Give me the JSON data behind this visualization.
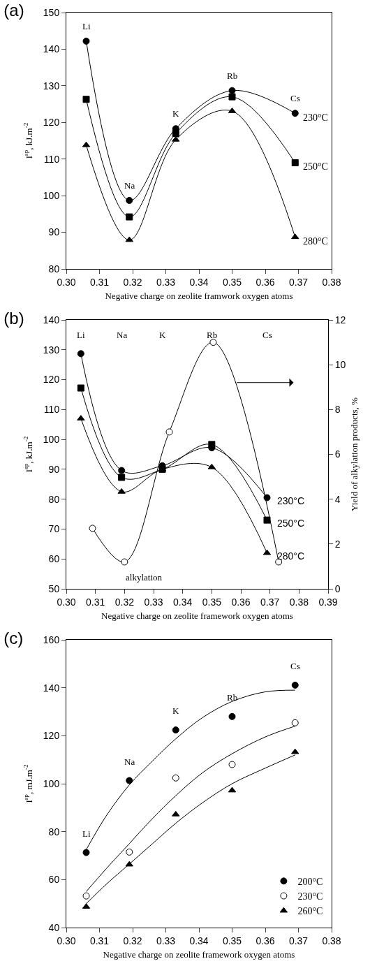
{
  "chart_data": [
    {
      "type": "line",
      "title": "(a)",
      "xlabel": "Negative charge on zeolite framwork oxygen atoms",
      "ylabel": "I$^{sp}$, kJ.m$^{-2}$",
      "x": [
        0.306,
        0.319,
        0.333,
        0.35,
        0.369
      ],
      "series": [
        {
          "name": "230°C",
          "color": "#000000",
          "marker": "circle",
          "values": [
            142.2,
            98.7,
            118.3,
            128.7,
            122.5
          ]
        },
        {
          "name": "250°C",
          "color": "#000000",
          "marker": "square",
          "values": [
            126.3,
            94.2,
            117.0,
            127.0,
            109.0
          ]
        },
        {
          "name": "280°C",
          "color": "#000000",
          "marker": "triangle",
          "values": [
            113.8,
            87.9,
            115.3,
            123.1,
            88.7
          ]
        }
      ],
      "xlim": [
        0.3,
        0.38
      ],
      "xticks": [
        {
          "value": 0.3,
          "label": "0.30"
        },
        {
          "value": 0.31,
          "label": "0.31"
        },
        {
          "value": 0.32,
          "label": "0.32"
        },
        {
          "value": 0.33,
          "label": "0.33"
        },
        {
          "value": 0.34,
          "label": "0.34"
        },
        {
          "value": 0.35,
          "label": "0.35"
        },
        {
          "value": 0.36,
          "label": "0.36"
        },
        {
          "value": 0.37,
          "label": "0.37"
        },
        {
          "value": 0.38,
          "label": "0.38"
        }
      ],
      "ylim": [
        80,
        150
      ],
      "yticks": [
        80,
        90,
        100,
        110,
        120,
        130,
        140,
        150
      ],
      "annotations": [
        "Li",
        "Na",
        "K",
        "Rb",
        "Cs"
      ],
      "grid": false,
      "legend": false
    },
    {
      "type": "line",
      "title": "(b)",
      "xlabel": "Negative charge on zeolite framework oxygen atoms",
      "ylabel": "I$^{sp}$, kJ.m$^{-2}$",
      "y2label": "Yield of alkylation products, %",
      "x": [
        0.305,
        0.319,
        0.333,
        0.35,
        0.369
      ],
      "series": [
        {
          "name": "230°C",
          "color": "#000000",
          "marker": "circle",
          "values": [
            128.7,
            89.6,
            91.2,
            97.2,
            80.5
          ]
        },
        {
          "name": "250°C",
          "color": "#000000",
          "marker": "square",
          "values": [
            117.2,
            87.3,
            90.0,
            98.3,
            73.0
          ]
        },
        {
          "name": "280°C",
          "color": "#000000",
          "marker": "triangle",
          "values": [
            107.0,
            82.5,
            90.0,
            90.7,
            62.0
          ]
        },
        {
          "color": "#ffffff",
          "marker": "circle",
          "axis": "y2",
          "x": [
            0.309,
            0.32,
            0.3354,
            0.3505,
            0.373
          ],
          "values": [
            2.7,
            1.2,
            7.0,
            11.0,
            1.2
          ]
        }
      ],
      "xlim": [
        0.3,
        0.39
      ],
      "xticks": [
        {
          "value": 0.3,
          "label": "0.30"
        },
        {
          "value": 0.31,
          "label": "0.31"
        },
        {
          "value": 0.32,
          "label": "0.32"
        },
        {
          "value": 0.33,
          "label": "0.33"
        },
        {
          "value": 0.34,
          "label": "0.34"
        },
        {
          "value": 0.35,
          "label": "0.35"
        },
        {
          "value": 0.36,
          "label": "0.36"
        },
        {
          "value": 0.37,
          "label": "0.37"
        },
        {
          "value": 0.38,
          "label": "0.38"
        },
        {
          "value": 0.39,
          "label": "0.39"
        }
      ],
      "ylim": [
        50,
        140
      ],
      "yticks": [
        50,
        60,
        70,
        80,
        90,
        100,
        110,
        120,
        130,
        140
      ],
      "y2lim": [
        0,
        12
      ],
      "y2ticks": [
        0,
        2,
        4,
        6,
        8,
        10,
        12
      ],
      "annotations": [
        "Li",
        "Na",
        "K",
        "Rb",
        "Cs",
        "alkylation"
      ],
      "grid": false,
      "legend": false
    },
    {
      "type": "scatter",
      "title": "(c)",
      "xlabel": "Negative charge on zeolite framework oxygen atoms",
      "ylabel": "I$^{sp}$, mJ.m$^{-2}$",
      "x": [
        0.306,
        0.319,
        0.333,
        0.35,
        0.369
      ],
      "series": [
        {
          "name": "200°C",
          "color": "#000000",
          "marker": "circle",
          "values": [
            71.3,
            101.3,
            122.4,
            128.0,
            141.1
          ]
        },
        {
          "name": "230°C",
          "color": "#ffffff",
          "marker": "circle",
          "values": [
            53.2,
            71.5,
            102.4,
            108.0,
            125.4
          ]
        },
        {
          "name": "260°C",
          "color": "#000000",
          "marker": "triangle",
          "values": [
            48.7,
            66.3,
            87.2,
            97.2,
            113.2
          ]
        },
        {
          "type": "line",
          "color": "#000000",
          "marker": "none",
          "x": [
            0.306,
            0.312,
            0.319,
            0.326,
            0.333,
            0.341,
            0.35,
            0.36,
            0.369
          ],
          "values": [
            72.5,
            86.5,
            99.5,
            109.5,
            118.7,
            127.5,
            134.3,
            138.3,
            139.0
          ]
        },
        {
          "type": "line",
          "color": "#000000",
          "marker": "none",
          "x": [
            0.306,
            0.312,
            0.319,
            0.326,
            0.333,
            0.341,
            0.35,
            0.36,
            0.369
          ],
          "values": [
            55.0,
            64.5,
            75.0,
            85.5,
            95.0,
            104.5,
            112.5,
            119.5,
            124.0
          ]
        },
        {
          "type": "line",
          "color": "#000000",
          "marker": "none",
          "x": [
            0.306,
            0.312,
            0.319,
            0.326,
            0.333,
            0.341,
            0.35,
            0.36,
            0.369
          ],
          "values": [
            50.0,
            58.0,
            66.5,
            75.0,
            83.5,
            92.0,
            100.0,
            106.5,
            112.0
          ]
        }
      ],
      "xlim": [
        0.3,
        0.38
      ],
      "xticks": [
        {
          "value": 0.3,
          "label": "0.30"
        },
        {
          "value": 0.31,
          "label": "0.31"
        },
        {
          "value": 0.32,
          "label": "0.32"
        },
        {
          "value": 0.33,
          "label": "0.33"
        },
        {
          "value": 0.34,
          "label": "0.34"
        },
        {
          "value": 0.35,
          "label": "0.35"
        },
        {
          "value": 0.36,
          "label": "0.36"
        },
        {
          "value": 0.37,
          "label": "0.37"
        },
        {
          "value": 0.38,
          "label": "0.38"
        }
      ],
      "ylim": [
        40,
        160
      ],
      "yticks": [
        40,
        60,
        80,
        100,
        120,
        140,
        160
      ],
      "annotations": [
        "Li",
        "Na",
        "K",
        "Rb",
        "Cs"
      ],
      "grid": false,
      "legend": "bottom right"
    }
  ]
}
